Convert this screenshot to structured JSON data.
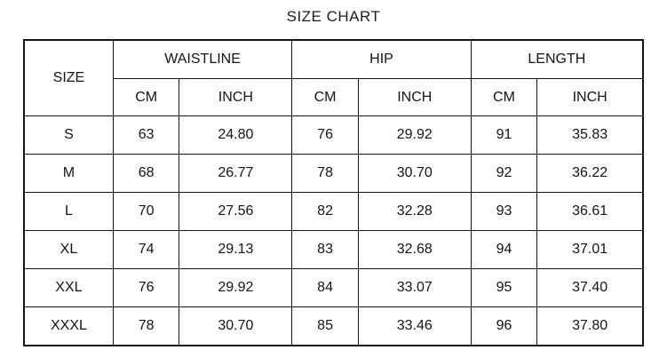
{
  "title": "SIZE CHART",
  "table": {
    "size_header": "SIZE",
    "groups": [
      {
        "label": "WAISTLINE"
      },
      {
        "label": "HIP"
      },
      {
        "label": "LENGTH"
      }
    ],
    "units": [
      "CM",
      "INCH",
      "CM",
      "INCH",
      "CM",
      "INCH"
    ],
    "rows": [
      {
        "size": "S",
        "cells": [
          "63",
          "24.80",
          "76",
          "29.92",
          "91",
          "35.83"
        ]
      },
      {
        "size": "M",
        "cells": [
          "68",
          "26.77",
          "78",
          "30.70",
          "92",
          "36.22"
        ]
      },
      {
        "size": "L",
        "cells": [
          "70",
          "27.56",
          "82",
          "32.28",
          "93",
          "36.61"
        ]
      },
      {
        "size": "XL",
        "cells": [
          "74",
          "29.13",
          "83",
          "32.68",
          "94",
          "37.01"
        ]
      },
      {
        "size": "XXL",
        "cells": [
          "76",
          "29.92",
          "84",
          "33.07",
          "95",
          "37.40"
        ]
      },
      {
        "size": "XXXL",
        "cells": [
          "78",
          "30.70",
          "85",
          "33.46",
          "96",
          "37.80"
        ]
      }
    ]
  },
  "chart_data": {
    "type": "table",
    "title": "SIZE CHART",
    "columns": [
      "SIZE",
      "WAISTLINE CM",
      "WAISTLINE INCH",
      "HIP CM",
      "HIP INCH",
      "LENGTH CM",
      "LENGTH INCH"
    ],
    "rows": [
      [
        "S",
        63,
        24.8,
        76,
        29.92,
        91,
        35.83
      ],
      [
        "M",
        68,
        26.77,
        78,
        30.7,
        92,
        36.22
      ],
      [
        "L",
        70,
        27.56,
        82,
        32.28,
        93,
        36.61
      ],
      [
        "XL",
        74,
        29.13,
        83,
        32.68,
        94,
        37.01
      ],
      [
        "XXL",
        76,
        29.92,
        84,
        33.07,
        95,
        37.4
      ],
      [
        "XXXL",
        78,
        30.7,
        85,
        33.46,
        96,
        37.8
      ]
    ],
    "layout": {
      "grid": true,
      "borders": "all",
      "header_levels": 2
    }
  },
  "colors": {
    "background": "#ffffff",
    "border": "#141414",
    "text": "#1a1a1a"
  }
}
